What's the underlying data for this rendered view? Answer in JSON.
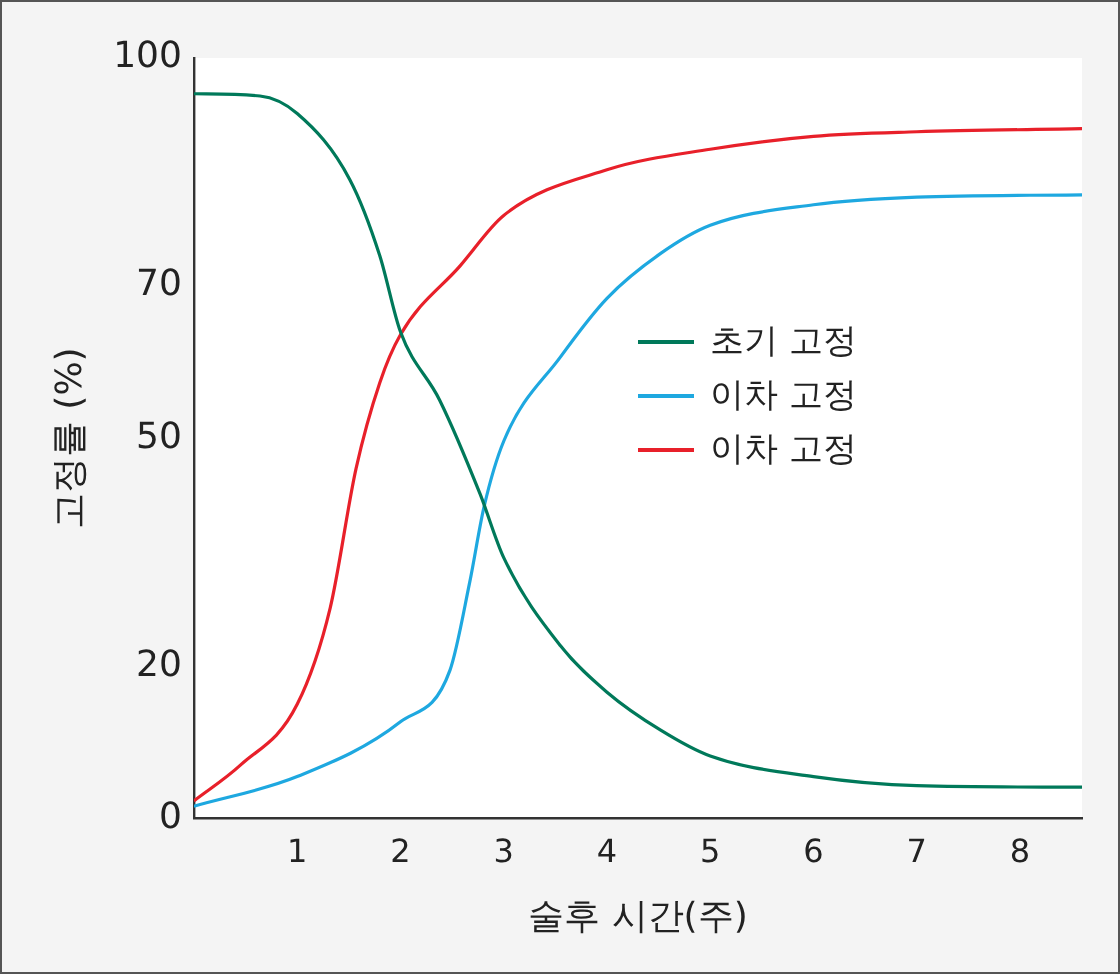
{
  "chart_data": {
    "type": "line",
    "xlabel": "술후 시간(주)",
    "ylabel": "고정률 (%)",
    "xlim": [
      0,
      8.6
    ],
    "xticks": [
      1,
      2,
      3,
      4,
      5,
      6,
      7,
      8
    ],
    "ylim": [
      0,
      100
    ],
    "yticks": [
      0,
      20,
      50,
      70,
      100
    ],
    "grid": false,
    "legend": "right",
    "marker": "none",
    "line_style": "solid",
    "series": [
      {
        "name": "초기 고정",
        "color": "#00795a",
        "x": [
          0,
          0.64,
          1,
          1.51,
          1.8,
          2,
          2.38,
          2.77,
          3,
          3.55,
          4,
          4.52,
          5,
          6,
          7,
          8.6
        ],
        "values": [
          95.3,
          95,
          92.7,
          84,
          74,
          64,
          55,
          42.7,
          34.3,
          22.7,
          16.6,
          11.6,
          8.2,
          5.5,
          4.3,
          4.1
        ]
      },
      {
        "name": "이차 고정",
        "color": "#1ea8e0",
        "x": [
          0,
          1,
          2,
          2.48,
          2.67,
          2.81,
          3,
          3.55,
          4,
          4.52,
          5,
          6,
          7,
          8.6
        ],
        "values": [
          1.6,
          5.5,
          12.7,
          19.5,
          31,
          41,
          49.6,
          60.7,
          68.4,
          74.3,
          78,
          80.7,
          81.7,
          82
        ]
      },
      {
        "name": "이차 고정",
        "color": "#e8202a",
        "x": [
          0,
          0.45,
          1,
          1.32,
          1.57,
          1.8,
          2,
          2.58,
          3,
          4,
          5,
          6,
          7,
          8.6
        ],
        "values": [
          2.3,
          7,
          15,
          27.7,
          46,
          57.3,
          63.6,
          72.7,
          79.3,
          85.3,
          88,
          89.7,
          90.3,
          90.7
        ]
      }
    ]
  }
}
